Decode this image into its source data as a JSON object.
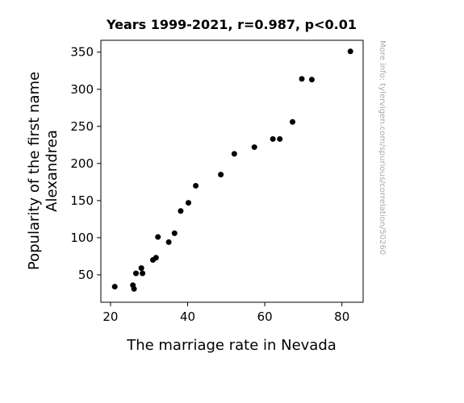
{
  "chart_data": {
    "type": "scatter",
    "title": "Years 1999-2021, r=0.987, p<0.01",
    "xlabel": "The marriage rate in Nevada",
    "ylabel_lines": [
      "Popularity of the first name",
      "Alexandrea"
    ],
    "watermark": "More info: tylervigen.com/spurious/correlation/50260",
    "xlim": [
      17.5,
      85.5
    ],
    "ylim": [
      13,
      366
    ],
    "xticks": [
      20,
      40,
      60,
      80
    ],
    "yticks": [
      50,
      100,
      150,
      200,
      250,
      300,
      350
    ],
    "grid": false,
    "point_color": "#000000",
    "points": [
      {
        "x": 21.1,
        "y": 34
      },
      {
        "x": 25.8,
        "y": 36
      },
      {
        "x": 26.1,
        "y": 31
      },
      {
        "x": 26.6,
        "y": 52
      },
      {
        "x": 28.0,
        "y": 59
      },
      {
        "x": 28.3,
        "y": 52
      },
      {
        "x": 31.0,
        "y": 70
      },
      {
        "x": 31.8,
        "y": 73
      },
      {
        "x": 32.3,
        "y": 101
      },
      {
        "x": 35.1,
        "y": 94
      },
      {
        "x": 36.6,
        "y": 106
      },
      {
        "x": 38.2,
        "y": 136
      },
      {
        "x": 40.2,
        "y": 147
      },
      {
        "x": 42.1,
        "y": 170
      },
      {
        "x": 48.6,
        "y": 185
      },
      {
        "x": 52.1,
        "y": 213
      },
      {
        "x": 57.3,
        "y": 222
      },
      {
        "x": 62.1,
        "y": 233
      },
      {
        "x": 63.9,
        "y": 233
      },
      {
        "x": 67.2,
        "y": 256
      },
      {
        "x": 69.6,
        "y": 314
      },
      {
        "x": 72.2,
        "y": 313
      },
      {
        "x": 82.2,
        "y": 351
      }
    ]
  }
}
